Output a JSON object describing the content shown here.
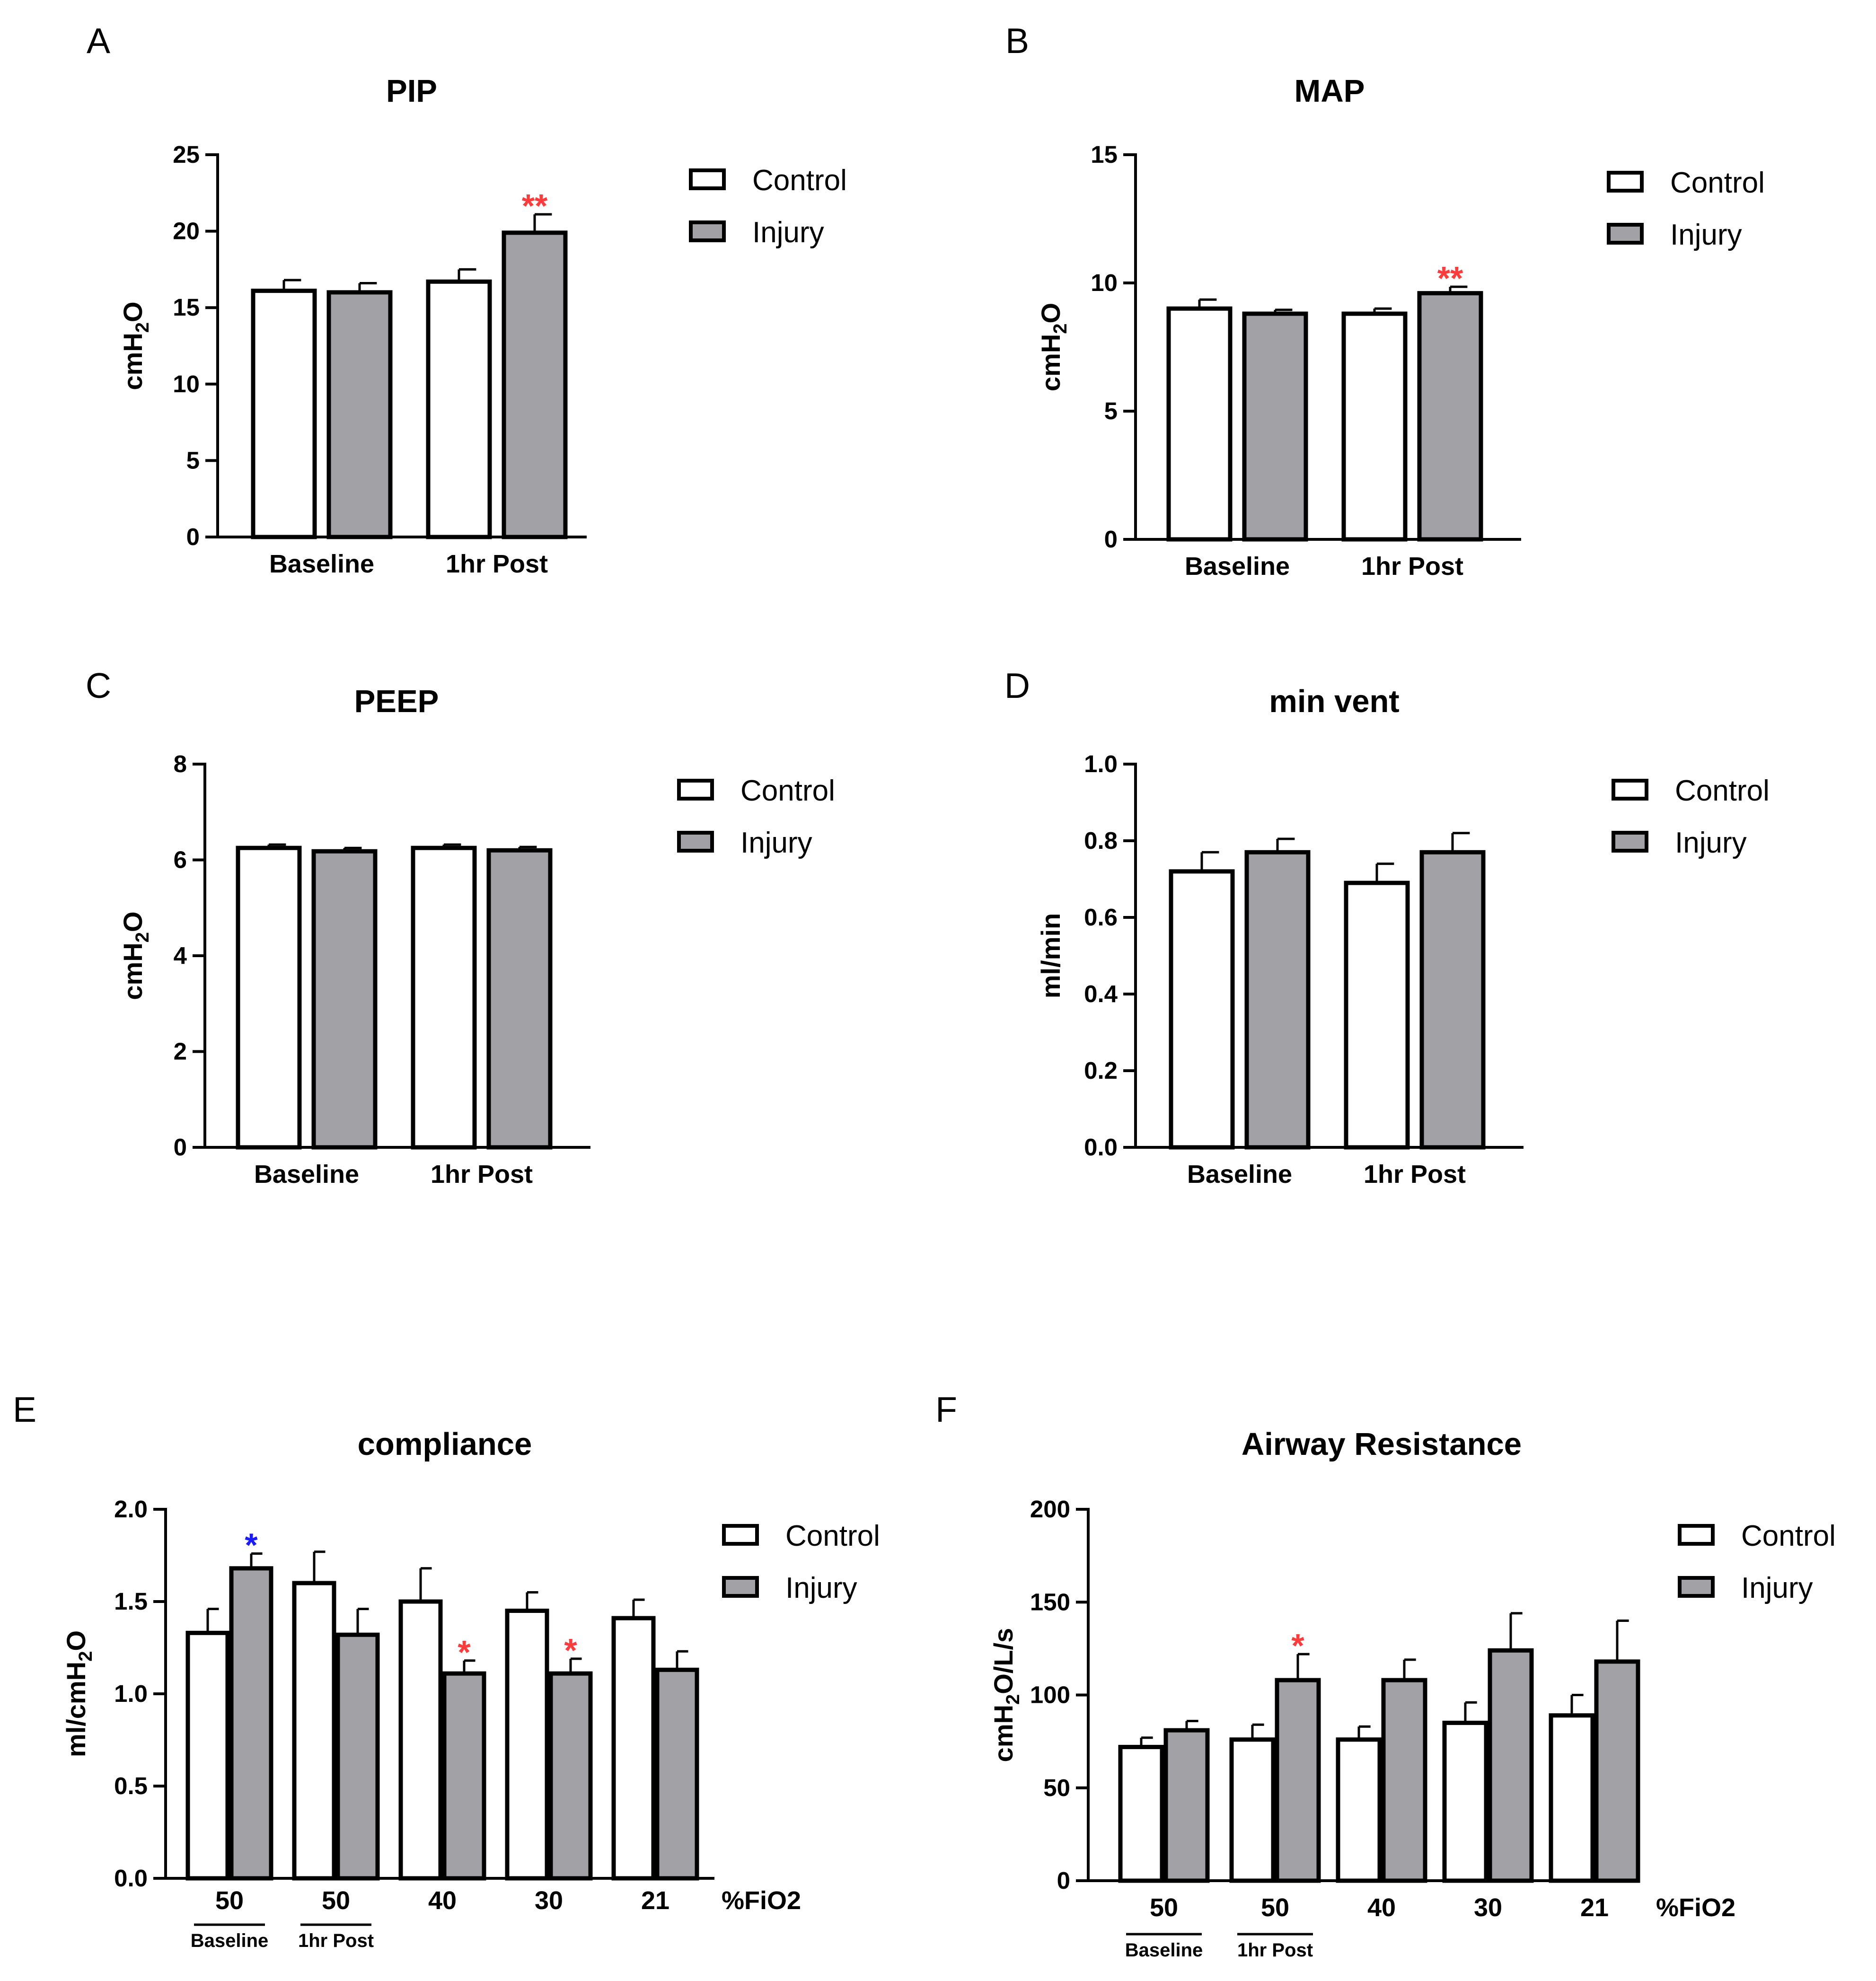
{
  "colors": {
    "control": "#ffffff",
    "injury": "#a2a2a6",
    "stroke": "#000000",
    "sig_red": "#ff3b3b",
    "sig_blue": "#1a1aff"
  },
  "chart_data": [
    {
      "panel": "A",
      "type": "bar",
      "title": "PIP",
      "ylabel": "cmH2O",
      "ylim": [
        0,
        25
      ],
      "yticks": [
        "0",
        "5",
        "10",
        "15",
        "20",
        "25"
      ],
      "categories": [
        "Baseline",
        "1hr Post"
      ],
      "series": [
        {
          "name": "Control",
          "values": [
            16.1,
            16.7
          ],
          "errors": [
            0.7,
            0.8
          ]
        },
        {
          "name": "Injury",
          "values": [
            16.0,
            19.9
          ],
          "errors": [
            0.6,
            1.2
          ]
        }
      ],
      "annotations": [
        {
          "text": "**",
          "category": 1,
          "series": 1,
          "color": "red"
        }
      ],
      "legend": "right"
    },
    {
      "panel": "B",
      "type": "bar",
      "title": "MAP",
      "ylabel": "cmH2O",
      "ylim": [
        0,
        15
      ],
      "yticks": [
        "0",
        "5",
        "10",
        "15"
      ],
      "categories": [
        "Baseline",
        "1hr Post"
      ],
      "series": [
        {
          "name": "Control",
          "values": [
            9.0,
            8.8
          ],
          "errors": [
            0.35,
            0.2
          ]
        },
        {
          "name": "Injury",
          "values": [
            8.8,
            9.6
          ],
          "errors": [
            0.15,
            0.25
          ]
        }
      ],
      "annotations": [
        {
          "text": "**",
          "category": 1,
          "series": 1,
          "color": "red"
        }
      ],
      "legend": "right"
    },
    {
      "panel": "C",
      "type": "bar",
      "title": "PEEP",
      "ylabel": "cmH2O",
      "ylim": [
        0,
        8
      ],
      "yticks": [
        "0",
        "2",
        "4",
        "6",
        "8"
      ],
      "categories": [
        "Baseline",
        "1hr Post"
      ],
      "series": [
        {
          "name": "Control",
          "values": [
            6.25,
            6.25
          ],
          "errors": [
            0.07,
            0.07
          ]
        },
        {
          "name": "Injury",
          "values": [
            6.18,
            6.2
          ],
          "errors": [
            0.07,
            0.07
          ]
        }
      ],
      "annotations": [],
      "legend": "right"
    },
    {
      "panel": "D",
      "type": "bar",
      "title": "min vent",
      "ylabel": "ml/min",
      "ylim": [
        0,
        1.0
      ],
      "yticks": [
        "0.0",
        "0.2",
        "0.4",
        "0.6",
        "0.8",
        "1.0"
      ],
      "categories": [
        "Baseline",
        "1hr Post"
      ],
      "series": [
        {
          "name": "Control",
          "values": [
            0.72,
            0.69
          ],
          "errors": [
            0.05,
            0.05
          ]
        },
        {
          "name": "Injury",
          "values": [
            0.77,
            0.77
          ],
          "errors": [
            0.035,
            0.05
          ]
        }
      ],
      "annotations": [],
      "legend": "right"
    },
    {
      "panel": "E",
      "type": "bar",
      "title": "compliance",
      "ylabel": "ml/cmH2O",
      "ylim": [
        0,
        2.0
      ],
      "yticks": [
        "0.0",
        "0.5",
        "1.0",
        "1.5",
        "2.0"
      ],
      "categories": [
        "50",
        "50",
        "40",
        "30",
        "21"
      ],
      "subcategories": [
        "Baseline",
        "1hr Post",
        "",
        "",
        ""
      ],
      "xlabel": "%FiO2",
      "series": [
        {
          "name": "Control",
          "values": [
            1.33,
            1.6,
            1.5,
            1.45,
            1.41
          ],
          "errors": [
            0.13,
            0.17,
            0.18,
            0.1,
            0.1
          ]
        },
        {
          "name": "Injury",
          "values": [
            1.68,
            1.32,
            1.11,
            1.11,
            1.13
          ],
          "errors": [
            0.08,
            0.14,
            0.07,
            0.08,
            0.1
          ]
        }
      ],
      "annotations": [
        {
          "text": "*",
          "category": 0,
          "series": 1,
          "color": "blue"
        },
        {
          "text": "*",
          "category": 2,
          "series": 1,
          "color": "red"
        },
        {
          "text": "*",
          "category": 3,
          "series": 1,
          "color": "red"
        }
      ],
      "legend": "right"
    },
    {
      "panel": "F",
      "type": "bar",
      "title": "Airway Resistance",
      "ylabel": "cmH2O/L/s",
      "ylim": [
        0,
        200
      ],
      "yticks": [
        "0",
        "50",
        "100",
        "150",
        "200"
      ],
      "categories": [
        "50",
        "50",
        "40",
        "30",
        "21"
      ],
      "subcategories": [
        "Baseline",
        "1hr Post",
        "",
        "",
        ""
      ],
      "xlabel": "%FiO2",
      "series": [
        {
          "name": "Control",
          "values": [
            72,
            76,
            76,
            85,
            89
          ],
          "errors": [
            5,
            8,
            7,
            11,
            11
          ]
        },
        {
          "name": "Injury",
          "values": [
            81,
            108,
            108,
            124,
            118
          ],
          "errors": [
            5,
            14,
            11,
            20,
            22
          ]
        }
      ],
      "annotations": [
        {
          "text": "*",
          "category": 1,
          "series": 1,
          "color": "red"
        }
      ],
      "legend": "right"
    }
  ]
}
